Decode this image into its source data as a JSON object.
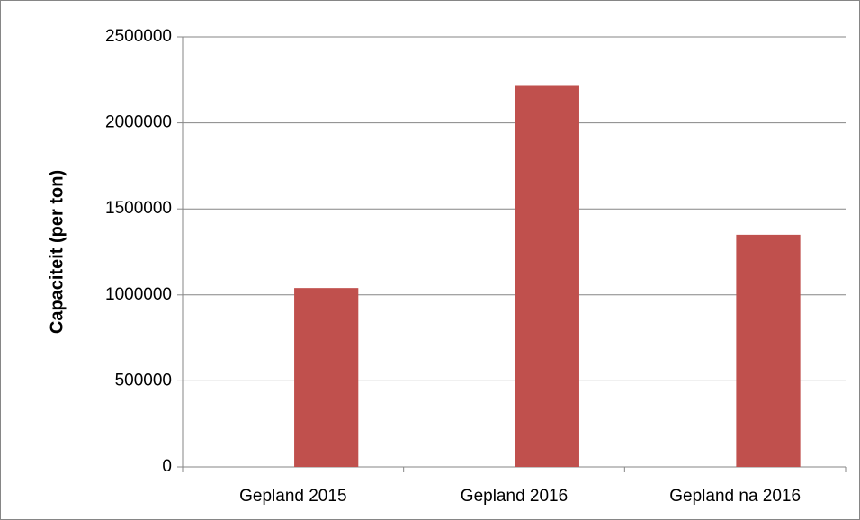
{
  "chart_data": {
    "type": "bar",
    "y_label": "Capaciteit (per ton)",
    "categories": [
      "Gepland 2015",
      "Gepland 2016",
      "Gepland na 2016"
    ],
    "values": [
      1040000,
      2215000,
      1350000
    ],
    "color": "#c0504d",
    "ylim": [
      0,
      2500000
    ],
    "yticks": [
      0,
      500000,
      1000000,
      1500000,
      2000000,
      2500000
    ],
    "grid": true
  }
}
